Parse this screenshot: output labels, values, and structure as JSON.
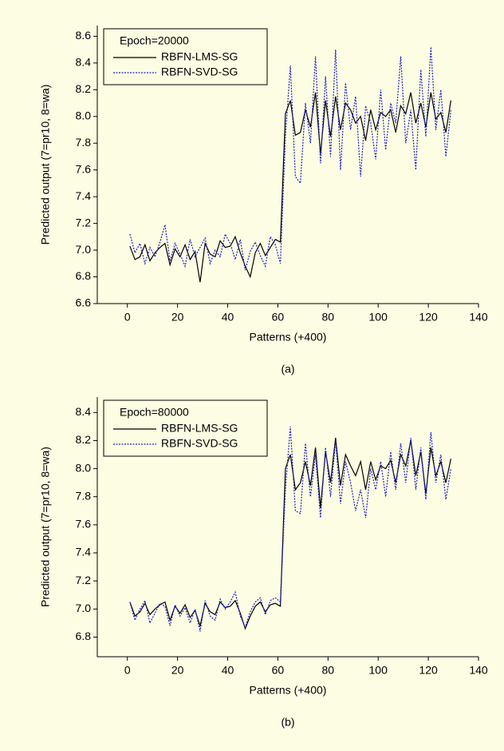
{
  "chart_data": [
    {
      "type": "line",
      "caption": "(a)",
      "legend_title": "Epoch=20000",
      "legend": "upper left",
      "x_label": "Patterns (+400)",
      "y_label": "Predicted output (7=pr10, 8=wa)",
      "x": [
        1,
        3,
        5,
        7,
        9,
        11,
        13,
        15,
        17,
        19,
        21,
        23,
        25,
        27,
        29,
        31,
        33,
        35,
        37,
        39,
        41,
        43,
        45,
        47,
        49,
        51,
        53,
        55,
        57,
        59,
        61,
        63,
        65,
        67,
        69,
        71,
        73,
        75,
        77,
        79,
        81,
        83,
        85,
        87,
        89,
        91,
        93,
        95,
        97,
        99,
        101,
        103,
        105,
        107,
        109,
        111,
        113,
        115,
        117,
        119,
        121,
        123,
        125,
        127,
        129
      ],
      "series": [
        {
          "name": "RBFN-LMS-SG",
          "color": "#000000",
          "line_style": "solid",
          "values": [
            7.03,
            6.93,
            6.95,
            7.04,
            6.92,
            6.98,
            7.02,
            7.05,
            6.89,
            7.01,
            6.95,
            7.04,
            6.93,
            6.99,
            6.76,
            7.05,
            6.97,
            6.95,
            7.07,
            7.02,
            7.03,
            7.1,
            6.98,
            6.88,
            6.8,
            6.98,
            7.05,
            6.96,
            7.02,
            7.08,
            7.06,
            8.02,
            8.12,
            7.86,
            7.88,
            8.05,
            7.92,
            8.18,
            7.72,
            8.12,
            7.85,
            8.15,
            7.9,
            8.1,
            8.05,
            7.95,
            8.0,
            7.82,
            8.05,
            7.9,
            8.03,
            8.0,
            8.05,
            7.88,
            8.08,
            8.02,
            8.18,
            7.95,
            8.1,
            7.92,
            8.18,
            7.98,
            8.03,
            7.88,
            8.12
          ]
        },
        {
          "name": "RBFN-SVD-SG",
          "color": "#1f1fd0",
          "line_style": "dotted",
          "values": [
            7.12,
            6.98,
            7.05,
            6.9,
            7.02,
            6.95,
            7.06,
            7.19,
            6.92,
            7.05,
            6.97,
            6.88,
            7.08,
            6.95,
            7.02,
            7.09,
            6.9,
            7.0,
            6.95,
            7.12,
            7.05,
            6.93,
            7.08,
            6.85,
            6.99,
            7.06,
            6.96,
            6.88,
            7.1,
            7.04,
            6.9,
            7.85,
            8.38,
            7.55,
            7.5,
            8.1,
            7.8,
            8.45,
            7.65,
            8.3,
            7.7,
            8.5,
            7.6,
            8.25,
            7.9,
            8.15,
            7.55,
            8.08,
            7.95,
            7.68,
            8.2,
            7.75,
            8.1,
            7.95,
            8.45,
            7.8,
            8.05,
            7.6,
            8.35,
            7.85,
            8.52,
            7.9,
            8.2,
            7.7,
            8.05
          ]
        }
      ],
      "xlim": [
        -12,
        140
      ],
      "xticks": [
        0,
        20,
        40,
        60,
        80,
        100,
        120,
        140
      ],
      "ylim": [
        6.6,
        8.68
      ],
      "yticks": [
        6.6,
        6.8,
        {
          "value": 7,
          "label": "7.0"
        },
        7.2,
        7.4,
        7.6,
        7.8,
        {
          "value": 8,
          "label": "8.0"
        },
        8.2,
        8.4,
        8.6
      ]
    },
    {
      "type": "line",
      "caption": "(b)",
      "legend_title": "Epoch=80000",
      "legend": "upper left",
      "x_label": "Patterns (+400)",
      "y_label": "Predicted output (7=pr10, 8=wa)",
      "x": [
        1,
        3,
        5,
        7,
        9,
        11,
        13,
        15,
        17,
        19,
        21,
        23,
        25,
        27,
        29,
        31,
        33,
        35,
        37,
        39,
        41,
        43,
        45,
        47,
        49,
        51,
        53,
        55,
        57,
        59,
        61,
        63,
        65,
        67,
        69,
        71,
        73,
        75,
        77,
        79,
        81,
        83,
        85,
        87,
        89,
        91,
        93,
        95,
        97,
        99,
        101,
        103,
        105,
        107,
        109,
        111,
        113,
        115,
        117,
        119,
        121,
        123,
        125,
        127,
        129
      ],
      "series": [
        {
          "name": "RBFN-LMS-SG",
          "color": "#000000",
          "line_style": "solid",
          "values": [
            7.05,
            6.95,
            6.98,
            7.04,
            6.96,
            7.0,
            7.03,
            7.05,
            6.92,
            7.02,
            6.97,
            7.03,
            6.94,
            6.99,
            6.88,
            7.04,
            6.98,
            6.96,
            7.05,
            7.01,
            7.02,
            7.06,
            6.97,
            6.86,
            6.95,
            7.02,
            7.05,
            6.98,
            7.03,
            7.04,
            7.02,
            8.0,
            8.1,
            7.85,
            7.9,
            8.05,
            7.88,
            8.15,
            7.72,
            8.12,
            7.9,
            8.22,
            7.88,
            8.1,
            8.02,
            7.95,
            8.05,
            7.85,
            8.05,
            7.92,
            8.02,
            8.0,
            8.06,
            7.9,
            8.1,
            8.02,
            8.2,
            7.95,
            8.12,
            7.82,
            8.15,
            7.95,
            8.05,
            7.9,
            8.07
          ]
        },
        {
          "name": "RBFN-SVD-SG",
          "color": "#1f1fd0",
          "line_style": "dotted",
          "values": [
            7.05,
            6.92,
            7.0,
            7.06,
            6.9,
            6.97,
            7.04,
            7.02,
            6.88,
            7.03,
            6.95,
            7.01,
            6.9,
            7.0,
            6.84,
            7.06,
            6.95,
            6.92,
            7.07,
            7.0,
            7.05,
            7.12,
            6.95,
            6.87,
            6.98,
            7.05,
            7.08,
            6.96,
            7.06,
            7.08,
            7.05,
            7.85,
            8.3,
            7.7,
            7.68,
            8.18,
            7.8,
            8.1,
            7.65,
            8.15,
            7.8,
            8.2,
            7.75,
            8.05,
            7.9,
            7.7,
            7.85,
            7.65,
            8.0,
            7.85,
            8.05,
            7.8,
            8.12,
            7.85,
            8.18,
            7.9,
            8.22,
            7.85,
            8.15,
            7.78,
            8.26,
            7.9,
            8.1,
            7.78,
            8.0
          ]
        }
      ],
      "xlim": [
        -12,
        140
      ],
      "xticks": [
        0,
        20,
        40,
        60,
        80,
        100,
        120,
        140
      ],
      "ylim": [
        6.66,
        8.51
      ],
      "yticks": [
        6.8,
        {
          "value": 7,
          "label": "7.0"
        },
        7.2,
        7.4,
        7.6,
        7.8,
        {
          "value": 8,
          "label": "8.0"
        },
        8.2,
        8.4
      ]
    }
  ]
}
